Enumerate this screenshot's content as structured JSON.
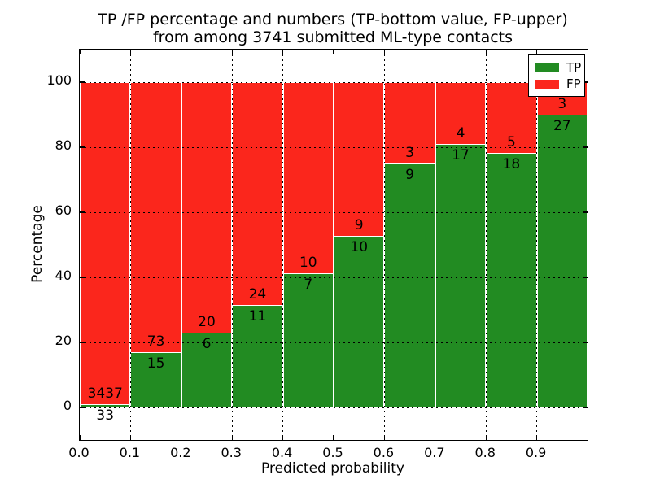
{
  "chart_data": {
    "type": "bar",
    "stacked": true,
    "normalized_to_percent": 100,
    "title_lines": [
      "TP /FP percentage and numbers (TP-bottom value, FP-upper)",
      "from among 3741 submitted ML-type contacts"
    ],
    "xlabel": "Predicted probability",
    "ylabel": "Percentage",
    "xlim": [
      0.0,
      1.0
    ],
    "ylim": [
      -10,
      110
    ],
    "grid": true,
    "legend_position": "upper right",
    "xticks": [
      "0.0",
      "0.1",
      "0.2",
      "0.3",
      "0.4",
      "0.5",
      "0.6",
      "0.7",
      "0.8",
      "0.9"
    ],
    "yticks": [
      0,
      20,
      40,
      60,
      80,
      100
    ],
    "bins": [
      [
        0.0,
        0.1
      ],
      [
        0.1,
        0.2
      ],
      [
        0.2,
        0.3
      ],
      [
        0.3,
        0.4
      ],
      [
        0.4,
        0.5
      ],
      [
        0.5,
        0.6
      ],
      [
        0.6,
        0.7
      ],
      [
        0.7,
        0.8
      ],
      [
        0.8,
        0.9
      ],
      [
        0.9,
        1.0
      ]
    ],
    "series": [
      {
        "name": "TP",
        "color": "#228B22",
        "counts": [
          33,
          15,
          6,
          11,
          7,
          10,
          9,
          17,
          18,
          27
        ]
      },
      {
        "name": "FP",
        "color": "#FB261C",
        "counts": [
          3437,
          73,
          20,
          24,
          10,
          9,
          3,
          4,
          5,
          3
        ]
      }
    ],
    "tp_percent": [
      0.95,
      17.05,
      23.08,
      31.43,
      41.18,
      52.63,
      75.0,
      80.95,
      78.26,
      90.0
    ],
    "total_contacts": 3741
  }
}
